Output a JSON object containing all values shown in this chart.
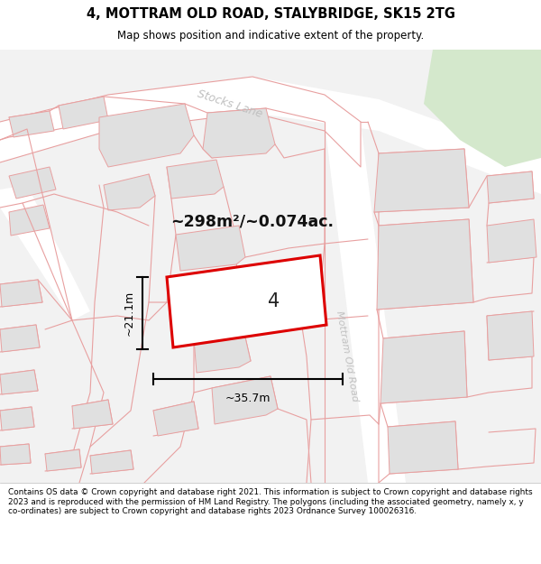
{
  "title_line1": "4, MOTTRAM OLD ROAD, STALYBRIDGE, SK15 2TG",
  "title_line2": "Map shows position and indicative extent of the property.",
  "footer_text": "Contains OS data © Crown copyright and database right 2021. This information is subject to Crown copyright and database rights 2023 and is reproduced with the permission of HM Land Registry. The polygons (including the associated geometry, namely x, y co-ordinates) are subject to Crown copyright and database rights 2023 Ordnance Survey 100026316.",
  "area_text": "~298m²/~0.074ac.",
  "label_width": "~35.7m",
  "label_height": "~21.1m",
  "property_number": "4",
  "bg_color": "#f2f2f2",
  "plot_line_color": "#dd0000",
  "other_line_color": "#e8a0a0",
  "building_fill": "#e0e0e0",
  "building_edge": "#e8a0a0",
  "road_fill": "#ffffff",
  "green_fill": "#d4e8cc",
  "road_label_color": "#c0c0c0",
  "title_color": "#000000",
  "footer_color": "#000000",
  "dim_line_color": "#000000",
  "plot_fill": "#ffffff"
}
